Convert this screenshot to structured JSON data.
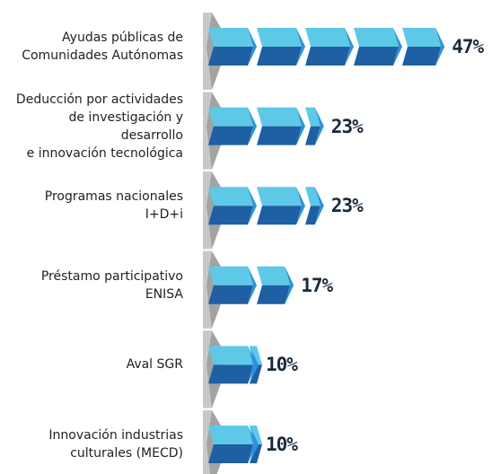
{
  "chart_data": {
    "type": "bar",
    "categories": [
      "Ayudas públicas de\nComunidades Autónomas",
      "Deducción por actividades\nde investigación y desarrollo\ne innovación tecnológica",
      "Programas nacionales\nI+D+i",
      "Préstamo participativo\nENISA",
      "Aval SGR",
      "Innovación industrias\nculturales (MECD)"
    ],
    "values": [
      47,
      23,
      23,
      17,
      10,
      10
    ],
    "value_labels": [
      "47%",
      "23%",
      "23%",
      "17%",
      "10%",
      "10%"
    ],
    "colors": {
      "top": "#5ec9e6",
      "bottom": "#1f5fa3",
      "tip": "#2d93da"
    }
  }
}
